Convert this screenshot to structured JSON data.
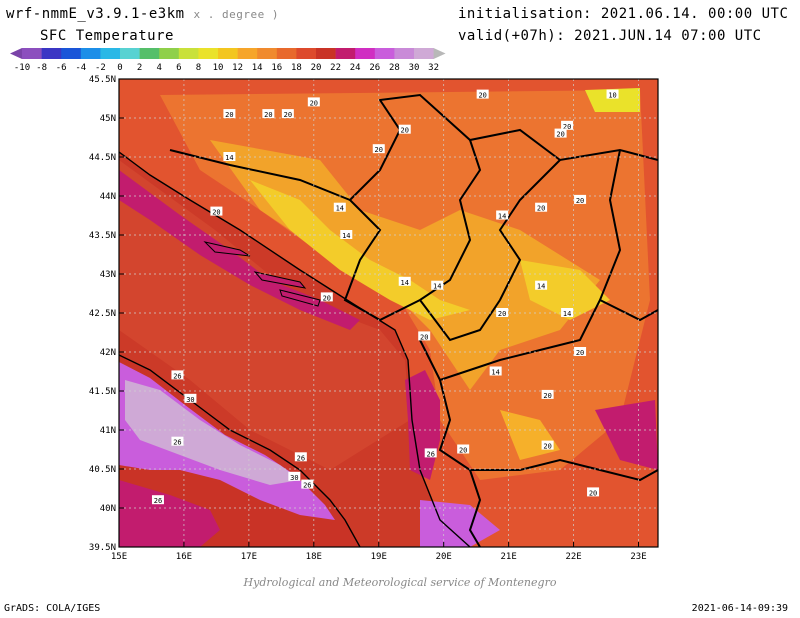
{
  "header": {
    "model": "wrf-nmmE_v3.9.1-e3km",
    "units": "x . degree )",
    "field": "SFC Temperature",
    "init_label": "initialisation:",
    "init_value": "2021.06.14. 00:00 UTC",
    "valid_label": "valid(+07h):",
    "valid_value": "2021.JUN.14 07:00 UTC"
  },
  "colorbar": {
    "ticks": [
      "-10",
      "-8",
      "-6",
      "-4",
      "-2",
      "0",
      "2",
      "4",
      "6",
      "8",
      "10",
      "12",
      "14",
      "16",
      "18",
      "20",
      "22",
      "24",
      "26",
      "28",
      "30",
      "32"
    ],
    "colors": [
      "#8c4fbe",
      "#3b36c4",
      "#1a55d8",
      "#1c8ee8",
      "#2ab8e6",
      "#58d2d2",
      "#55bf6a",
      "#8fd04a",
      "#c9e13a",
      "#eae22a",
      "#f3c61f",
      "#f6a52a",
      "#f08a2e",
      "#e8692c",
      "#dd4a2c",
      "#c93326",
      "#c21c6e",
      "#d02ec2",
      "#c95ddc",
      "#c98ad8",
      "#cfa9d6"
    ],
    "end_low": "#7a43a8",
    "end_high": "#b8b8b8"
  },
  "map": {
    "lat_labels": [
      "45.5N",
      "45N",
      "44.5N",
      "44N",
      "43.5N",
      "43N",
      "42.5N",
      "42N",
      "41.5N",
      "41N",
      "40.5N",
      "40N",
      "39.5N"
    ],
    "lon_labels": [
      "15E",
      "16E",
      "17E",
      "18E",
      "19E",
      "20E",
      "21E",
      "22E",
      "23E"
    ],
    "contour_labels": [
      {
        "t": "20",
        "lon": 16.7,
        "lat": 45.05
      },
      {
        "t": "20",
        "lon": 17.3,
        "lat": 45.05
      },
      {
        "t": "20",
        "lon": 17.6,
        "lat": 45.05
      },
      {
        "t": "20",
        "lon": 18.0,
        "lat": 45.2
      },
      {
        "t": "20",
        "lon": 20.6,
        "lat": 45.3
      },
      {
        "t": "20",
        "lon": 19.4,
        "lat": 44.85
      },
      {
        "t": "20",
        "lon": 21.9,
        "lat": 44.9
      },
      {
        "t": "20",
        "lon": 21.8,
        "lat": 44.8
      },
      {
        "t": "10",
        "lon": 22.6,
        "lat": 45.3
      },
      {
        "t": "14",
        "lon": 16.7,
        "lat": 44.5
      },
      {
        "t": "20",
        "lon": 19.0,
        "lat": 44.6
      },
      {
        "t": "20",
        "lon": 16.5,
        "lat": 43.8
      },
      {
        "t": "14",
        "lon": 18.4,
        "lat": 43.85
      },
      {
        "t": "14",
        "lon": 18.5,
        "lat": 43.5
      },
      {
        "t": "20",
        "lon": 21.5,
        "lat": 43.85
      },
      {
        "t": "20",
        "lon": 22.1,
        "lat": 43.95
      },
      {
        "t": "14",
        "lon": 20.9,
        "lat": 43.75
      },
      {
        "t": "14",
        "lon": 19.4,
        "lat": 42.9
      },
      {
        "t": "14",
        "lon": 19.9,
        "lat": 42.85
      },
      {
        "t": "14",
        "lon": 21.5,
        "lat": 42.85
      },
      {
        "t": "20",
        "lon": 18.2,
        "lat": 42.7
      },
      {
        "t": "20",
        "lon": 20.9,
        "lat": 42.5
      },
      {
        "t": "14",
        "lon": 21.9,
        "lat": 42.5
      },
      {
        "t": "20",
        "lon": 19.7,
        "lat": 42.2
      },
      {
        "t": "20",
        "lon": 22.1,
        "lat": 42.0
      },
      {
        "t": "14",
        "lon": 20.8,
        "lat": 41.75
      },
      {
        "t": "20",
        "lon": 21.6,
        "lat": 41.45
      },
      {
        "t": "26",
        "lon": 15.9,
        "lat": 41.7
      },
      {
        "t": "30",
        "lon": 16.1,
        "lat": 41.4
      },
      {
        "t": "26",
        "lon": 15.9,
        "lat": 40.85
      },
      {
        "t": "26",
        "lon": 17.8,
        "lat": 40.65
      },
      {
        "t": "30",
        "lon": 17.7,
        "lat": 40.4
      },
      {
        "t": "26",
        "lon": 17.9,
        "lat": 40.3
      },
      {
        "t": "26",
        "lon": 19.8,
        "lat": 40.7
      },
      {
        "t": "20",
        "lon": 20.3,
        "lat": 40.75
      },
      {
        "t": "26",
        "lon": 15.6,
        "lat": 40.1
      },
      {
        "t": "20",
        "lon": 21.6,
        "lat": 40.8
      },
      {
        "t": "20",
        "lon": 22.3,
        "lat": 40.2
      }
    ]
  },
  "footer": {
    "credits": "Hydrological and Meteorological service of Montenegro",
    "grads": "GrADS: COLA/IGES",
    "stamp": "2021-06-14-09:39"
  }
}
